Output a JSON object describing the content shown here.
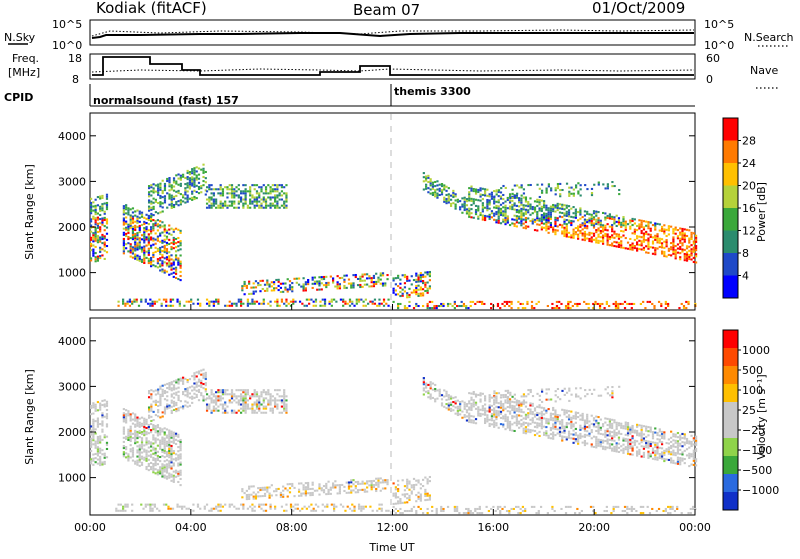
{
  "header": {
    "station": "Kodiak (fitACF)",
    "beam": "Beam 07",
    "date": "01/Oct/2009"
  },
  "status_panels": {
    "nsky_label": "N.Sky",
    "nsky_ticks": [
      "10^5",
      "10^0"
    ],
    "nsearch_label": "N.Search",
    "nsearch_ticks": [
      "10^5",
      "10^0"
    ],
    "freq_label_1": "Freq.",
    "freq_label_2": "[MHz]",
    "freq_ticks": [
      "18",
      "8"
    ],
    "nave_label": "Nave",
    "nave_ticks": [
      "60",
      "0"
    ],
    "cpid_label": "CPID",
    "cpid_segments": [
      {
        "label": "normalsound (fast) 157",
        "start_hour": 0
      },
      {
        "label": "themis 3300",
        "start_hour": 12
      }
    ]
  },
  "chart_data": [
    {
      "type": "heatmap",
      "title": "Power",
      "ylabel": "Slant Range [km]",
      "xlabel": "Time UT",
      "xlim": [
        0,
        24
      ],
      "ylim": [
        180,
        4500
      ],
      "x_ticks": [
        "00:00",
        "04:00",
        "08:00",
        "12:00",
        "16:00",
        "20:00",
        "00:00"
      ],
      "y_ticks": [
        1000,
        2000,
        3000,
        4000
      ],
      "colorbar_label": "Power [dB]",
      "colorbar_ticks": [
        "28",
        "24",
        "20",
        "16",
        "12",
        "8",
        "4"
      ],
      "colorbar_colors": [
        "#0000ff",
        "#1f49c8",
        "#2b8c6e",
        "#3aa83a",
        "#b5d23a",
        "#ffc000",
        "#ff7a00",
        "#ff0000"
      ]
    },
    {
      "type": "heatmap",
      "title": "Velocity",
      "ylabel": "Slant Range [km]",
      "xlabel": "Time UT",
      "xlim": [
        0,
        24
      ],
      "ylim": [
        180,
        4500
      ],
      "x_ticks": [
        "00:00",
        "04:00",
        "08:00",
        "12:00",
        "16:00",
        "20:00",
        "00:00"
      ],
      "y_ticks": [
        1000,
        2000,
        3000,
        4000
      ],
      "colorbar_label": "Velocity [m s⁻¹]",
      "colorbar_ticks": [
        "1000",
        "500",
        "100",
        "25",
        "−25",
        "−100",
        "−500",
        "−1000"
      ],
      "colorbar_colors": [
        "#1030c8",
        "#2a6adf",
        "#3aa83a",
        "#8fd34a",
        "#c8c8c8",
        "#c8c8c8",
        "#ffc000",
        "#ff8a00",
        "#ff4a00",
        "#ff0000"
      ]
    }
  ],
  "axis_time_label": "Time UT"
}
